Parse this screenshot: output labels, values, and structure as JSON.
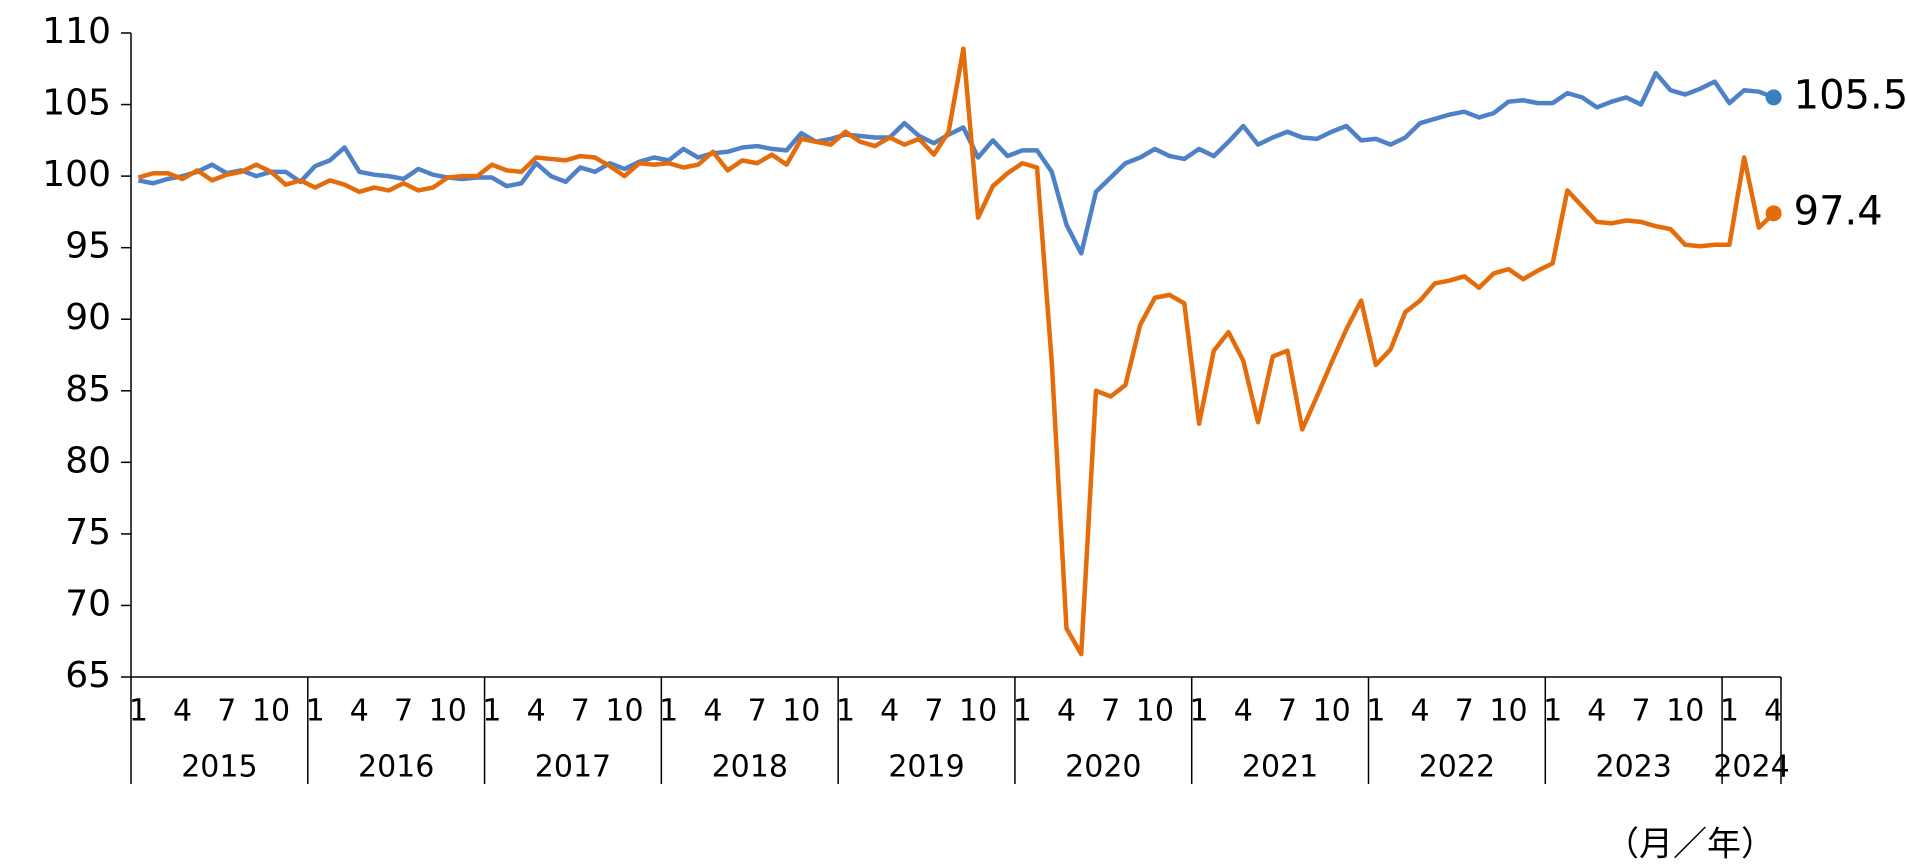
{
  "chart_data": {
    "type": "line",
    "categories": [
      "1",
      null,
      null,
      "4",
      null,
      null,
      "7",
      null,
      null,
      "10",
      null,
      null,
      "1",
      null,
      null,
      "4",
      null,
      null,
      "7",
      null,
      null,
      "10",
      null,
      null,
      "1",
      null,
      null,
      "4",
      null,
      null,
      "7",
      null,
      null,
      "10",
      null,
      null,
      "1",
      null,
      null,
      "4",
      null,
      null,
      "7",
      null,
      null,
      "10",
      null,
      null,
      "1",
      null,
      null,
      "4",
      null,
      null,
      "7",
      null,
      null,
      "10",
      null,
      null,
      "1",
      null,
      null,
      "4",
      null,
      null,
      "7",
      null,
      null,
      "10",
      null,
      null,
      "1",
      null,
      null,
      "4",
      null,
      null,
      "7",
      null,
      null,
      "10",
      null,
      null,
      "1",
      null,
      null,
      "4",
      null,
      null,
      "7",
      null,
      null,
      "10",
      null,
      null,
      "1",
      null,
      null,
      "4",
      null,
      null,
      "7",
      null,
      null,
      "10",
      null,
      null,
      "1",
      null,
      null,
      "4"
    ],
    "years": [
      "2015",
      "2016",
      "2017",
      "2018",
      "2019",
      "2020",
      "2021",
      "2022",
      "2023",
      "2024"
    ],
    "x_label": "（月／年）",
    "ylim": [
      65,
      110
    ],
    "yticks": [
      65,
      70,
      75,
      80,
      85,
      90,
      95,
      100,
      105,
      110
    ],
    "series": [
      {
        "color": "#4f81c7",
        "label_color": "#3a7fc0",
        "values": [
          99.7,
          99.5,
          99.8,
          100.0,
          100.3,
          100.8,
          100.2,
          100.4,
          100.0,
          100.3,
          100.3,
          99.6,
          100.7,
          101.1,
          102.0,
          100.3,
          100.1,
          100.0,
          99.8,
          100.5,
          100.1,
          99.9,
          99.8,
          99.9,
          99.9,
          99.3,
          99.5,
          100.9,
          100.0,
          99.6,
          100.6,
          100.3,
          100.9,
          100.5,
          101.0,
          101.3,
          101.1,
          101.9,
          101.3,
          101.6,
          101.7,
          102.0,
          102.1,
          101.9,
          101.8,
          103.0,
          102.4,
          102.6,
          102.9,
          102.8,
          102.7,
          102.7,
          103.7,
          102.8,
          102.3,
          102.9,
          103.4,
          101.3,
          102.5,
          101.4,
          101.8,
          101.8,
          100.3,
          96.6,
          94.6,
          98.9,
          99.9,
          100.9,
          101.3,
          101.9,
          101.4,
          101.2,
          101.9,
          101.4,
          102.4,
          103.5,
          102.2,
          102.7,
          103.1,
          102.7,
          102.6,
          103.1,
          103.5,
          102.5,
          102.6,
          102.2,
          102.7,
          103.7,
          104.0,
          104.3,
          104.5,
          104.1,
          104.4,
          105.2,
          105.3,
          105.1,
          105.1,
          105.8,
          105.5,
          104.8,
          105.2,
          105.5,
          105.0,
          107.2,
          106.0,
          105.7,
          106.1,
          106.6,
          105.1,
          106.0,
          105.9,
          105.5
        ],
        "value_labels": [
          null,
          null,
          null,
          null,
          null,
          null,
          null,
          null,
          null,
          null,
          null,
          null,
          null,
          null,
          null,
          null,
          null,
          null,
          null,
          null,
          null,
          null,
          null,
          null,
          null,
          null,
          null,
          null,
          null,
          null,
          null,
          null,
          null,
          null,
          null,
          null,
          null,
          null,
          null,
          null,
          null,
          null,
          null,
          null,
          null,
          null,
          null,
          null,
          null,
          null,
          null,
          null,
          null,
          null,
          null,
          null,
          null,
          null,
          null,
          null,
          null,
          null,
          null,
          null,
          null,
          null,
          null,
          null,
          null,
          null,
          null,
          null,
          null,
          null,
          null,
          null,
          null,
          null,
          null,
          null,
          null,
          null,
          null,
          null,
          null,
          null,
          null,
          null,
          null,
          null,
          null,
          null,
          null,
          null,
          null,
          null,
          null,
          null,
          null,
          null,
          null,
          null,
          null,
          null,
          null,
          null,
          null,
          null,
          null,
          null,
          null,
          "105.5"
        ]
      },
      {
        "color": "#e46c0a",
        "label_color": "#e46c0a",
        "values": [
          99.9,
          100.2,
          100.2,
          99.8,
          100.4,
          99.7,
          100.1,
          100.3,
          100.8,
          100.3,
          99.4,
          99.7,
          99.2,
          99.7,
          99.4,
          98.9,
          99.2,
          99.0,
          99.5,
          99.0,
          99.2,
          99.9,
          100.0,
          100.0,
          100.8,
          100.4,
          100.3,
          101.3,
          101.2,
          101.1,
          101.4,
          101.3,
          100.7,
          100.0,
          100.9,
          100.8,
          100.9,
          100.6,
          100.8,
          101.7,
          100.4,
          101.1,
          100.9,
          101.5,
          100.8,
          102.6,
          102.4,
          102.2,
          103.1,
          102.4,
          102.1,
          102.7,
          102.2,
          102.6,
          101.5,
          103.1,
          108.9,
          97.1,
          99.3,
          100.2,
          100.9,
          100.6,
          87.0,
          68.4,
          66.6,
          85.0,
          84.6,
          85.4,
          89.6,
          91.5,
          91.7,
          91.1,
          82.7,
          87.8,
          89.1,
          87.1,
          82.8,
          87.4,
          87.8,
          82.3,
          84.6,
          87.0,
          89.3,
          91.3,
          86.8,
          87.9,
          90.5,
          91.3,
          92.5,
          92.7,
          93.0,
          92.2,
          93.2,
          93.5,
          92.8,
          93.4,
          93.9,
          99.0,
          97.9,
          96.8,
          96.7,
          96.9,
          96.8,
          96.5,
          96.3,
          95.2,
          95.1,
          95.2,
          95.2,
          101.3,
          96.4,
          97.4
        ],
        "value_labels": [
          null,
          null,
          null,
          null,
          null,
          null,
          null,
          null,
          null,
          null,
          null,
          null,
          null,
          null,
          null,
          null,
          null,
          null,
          null,
          null,
          null,
          null,
          null,
          null,
          null,
          null,
          null,
          null,
          null,
          null,
          null,
          null,
          null,
          null,
          null,
          null,
          null,
          null,
          null,
          null,
          null,
          null,
          null,
          null,
          null,
          null,
          null,
          null,
          null,
          null,
          null,
          null,
          null,
          null,
          null,
          null,
          null,
          null,
          null,
          null,
          null,
          null,
          null,
          null,
          null,
          null,
          null,
          null,
          null,
          null,
          null,
          null,
          null,
          null,
          null,
          null,
          null,
          null,
          null,
          null,
          null,
          null,
          null,
          null,
          null,
          null,
          null,
          null,
          null,
          null,
          null,
          null,
          null,
          null,
          null,
          null,
          null,
          null,
          null,
          null,
          null,
          null,
          null,
          null,
          null,
          null,
          null,
          null,
          null,
          null,
          null,
          "97.4"
        ]
      }
    ]
  }
}
